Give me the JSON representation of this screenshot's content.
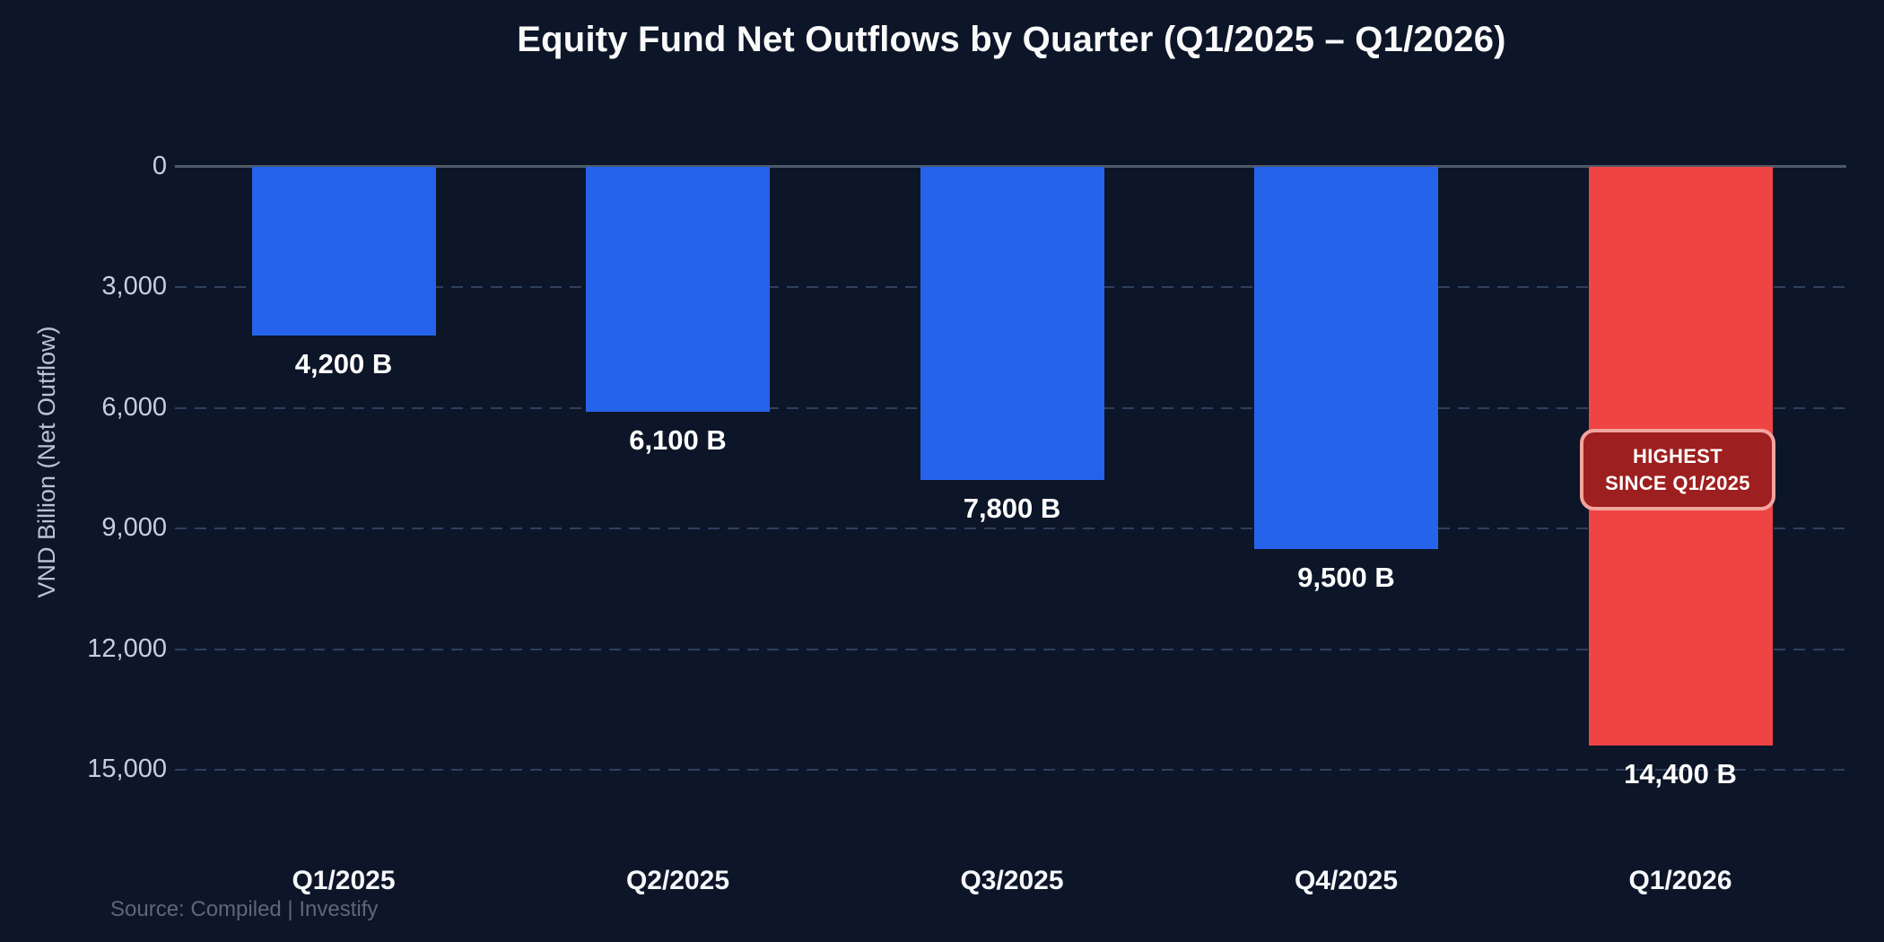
{
  "colors": {
    "background": "#0d1628",
    "bar_blue": "#2563eb",
    "bar_red": "#ef4444",
    "badge_fill": "#9e1f1f",
    "badge_border": "#f2a49e",
    "grid": "#2e3f5e",
    "zero_line": "#4e5a6a",
    "tick_text": "#c7cfdd",
    "axis_title_text": "#b9c3d2",
    "category_text": "#f5f7fa",
    "value_text": "#ffffff",
    "title_text": "#fafafa",
    "source_text": "#5d6775"
  },
  "chart_data": {
    "type": "bar",
    "title": "Equity Fund Net Outflows by Quarter (Q1/2025 – Q1/2026)",
    "categories": [
      "Q1/2025",
      "Q2/2025",
      "Q3/2025",
      "Q4/2025",
      "Q1/2026"
    ],
    "values": [
      4200,
      6100,
      7800,
      9500,
      14400
    ],
    "value_labels": [
      "4,200 B",
      "6,100 B",
      "7,800 B",
      "9,500 B",
      "14,400 B"
    ],
    "bar_colors": [
      "#2563eb",
      "#2563eb",
      "#2563eb",
      "#2563eb",
      "#ef4444"
    ],
    "bars_direction": "down",
    "ylabel": "VND Billion (Net Outflow)",
    "yticks": [
      0,
      3000,
      6000,
      9000,
      12000,
      15000
    ],
    "ytick_labels": [
      "0",
      "3,000",
      "6,000",
      "9,000",
      "12,000",
      "15,000"
    ],
    "ylim": [
      0,
      15000
    ],
    "grid": "dashed-horizontal",
    "legend": "none",
    "annotation": {
      "target": "Q1/2026",
      "lines": [
        "HIGHEST",
        "SINCE Q1/2025"
      ]
    },
    "source": "Source: Compiled | Investify"
  }
}
